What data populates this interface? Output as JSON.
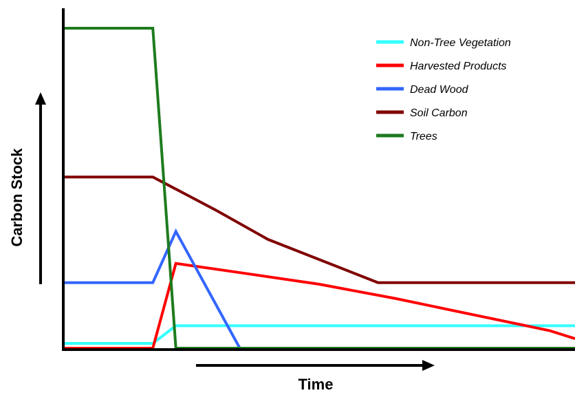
{
  "chart_data": {
    "type": "line",
    "title": "",
    "xlabel": "Time",
    "ylabel": "Carbon Stock",
    "ticks": "none",
    "grid": false,
    "legend_position": "top-right",
    "xlim": [
      0,
      100
    ],
    "ylim": [
      0,
      100
    ],
    "series": [
      {
        "name": "Non-Tree Vegetation",
        "color": "#33FFFF",
        "x": [
          0,
          17.5,
          22,
          100
        ],
        "y": [
          1.5,
          1.5,
          7,
          7
        ]
      },
      {
        "name": "Harvested Products",
        "color": "#FF0000",
        "x": [
          0,
          17.5,
          22,
          35,
          50,
          65,
          80,
          95,
          100
        ],
        "y": [
          0,
          0,
          26.5,
          23.5,
          20,
          15.5,
          10.5,
          5.5,
          3
        ]
      },
      {
        "name": "Dead Wood",
        "color": "#3366FF",
        "x": [
          0,
          17.5,
          22,
          34.5,
          100
        ],
        "y": [
          20.5,
          20.5,
          36.5,
          0,
          0
        ]
      },
      {
        "name": "Soil Carbon",
        "color": "#800000",
        "x": [
          0,
          17.5,
          30,
          40,
          61.5,
          100
        ],
        "y": [
          53.5,
          53.5,
          43,
          34,
          20.5,
          20.5
        ]
      },
      {
        "name": "Trees",
        "color": "#1E7B1E",
        "x": [
          0,
          17.5,
          22,
          100
        ],
        "y": [
          100,
          100,
          0,
          0
        ]
      }
    ]
  }
}
